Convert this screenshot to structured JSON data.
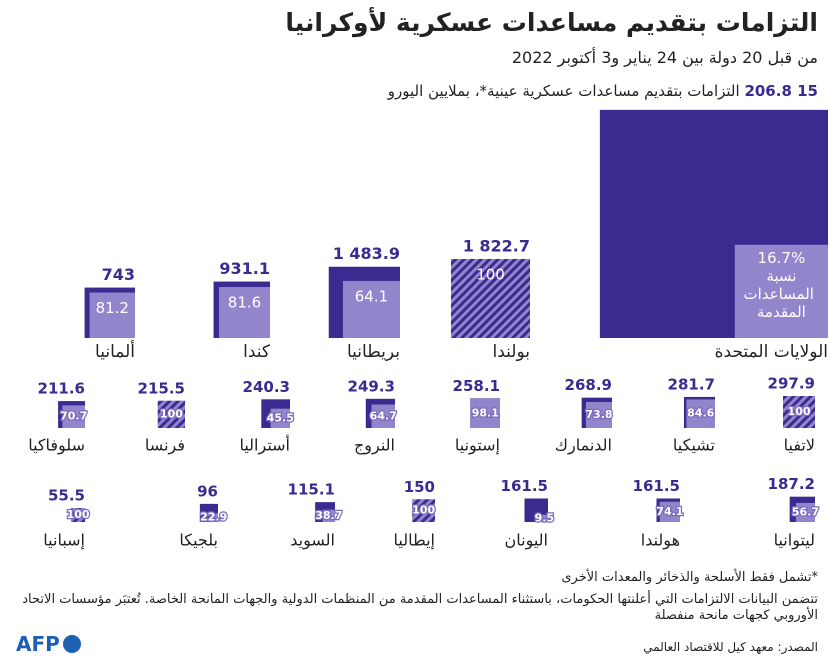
{
  "chart_data": {
    "type": "nested-square",
    "title": "التزامات بتقديم مساعدات عسكرية لأوكرانيا",
    "subtitle": "من قبل 20 دولة بين 24 يناير و3 أكتوبر 2022",
    "categories": [
      "الولايات المتحدة",
      "بولندا",
      "بريطانيا",
      "كندا",
      "ألمانيا",
      "لاتفيا",
      "تشيكيا",
      "الدنمارك",
      "إستونيا",
      "النروج",
      "أستراليا",
      "فرنسا",
      "سلوفاكيا",
      "ليتوانيا",
      "هولندا",
      "اليونان",
      "إيطاليا",
      "السويد",
      "بلجيكا",
      "إسبانيا"
    ],
    "series": [
      {
        "name": "التزامات بتقديم مساعدات عسكرية عينية*، بملايين اليورو",
        "color": "#3b2a8f",
        "values": [
          15206.8,
          1822.7,
          1483.9,
          931.1,
          743,
          297.9,
          281.7,
          268.9,
          258.1,
          249.3,
          240.3,
          215.5,
          211.6,
          187.2,
          161.5,
          161.5,
          150,
          115.1,
          96,
          55.5
        ],
        "value_labels": [
          "15 206.8",
          "1 822.7",
          "1 483.9",
          "931.1",
          "743",
          "297.9",
          "281.7",
          "268.9",
          "258.1",
          "249.3",
          "240.3",
          "215.5",
          "211.6",
          "187.2",
          "161.5",
          "161.5",
          "150",
          "115.1",
          "96",
          "55.5"
        ]
      },
      {
        "name": "نسبة المساعدات المقدمة",
        "color": "#9385cc",
        "values": [
          16.7,
          100,
          64.1,
          81.6,
          81.2,
          100,
          84.6,
          73.8,
          98.1,
          64.7,
          45.5,
          100,
          70.7,
          56.7,
          74.1,
          9.5,
          100,
          38.7,
          22.9,
          100
        ],
        "value_labels": [
          "16.7%",
          "100",
          "64.1",
          "81.6",
          "81.2",
          "100",
          "84.6",
          "73.8",
          "98.1",
          "64.7",
          "45.5",
          "100",
          "70.7",
          "56.7",
          "74.1",
          "9.5",
          "100",
          "38.7",
          "22.9",
          "100"
        ]
      }
    ],
    "notes": [
      "*تشمل فقط الأسلحة والذخائر والمعدات الأخرى",
      "تتضمن البيانات الالتزامات التي أعلنتها الحكومات، باستثناء المساعدات المقدمة من المنظمات الدولية والجهات المانحة الخاصة. تُعتبَر مؤسسات الاتحاد الأوروبي كجهات مانحة منفصلة"
    ],
    "source": "المصدر: معهد كيل للاقتصاد العالمي",
    "logo": "AFP"
  }
}
